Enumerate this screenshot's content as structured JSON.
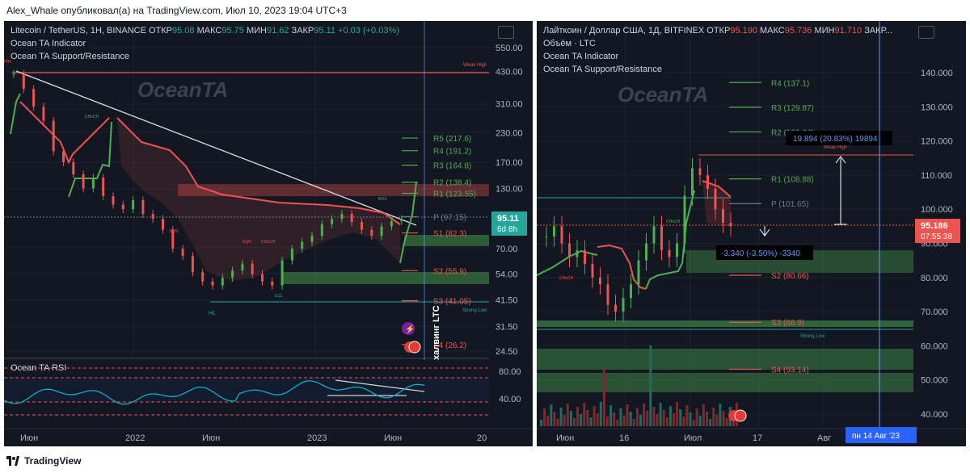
{
  "header": {
    "text": "Alex_Whale опубликовал(а) на TradingView.com, Июл 10, 2023 19:04 UTC+3"
  },
  "footer": {
    "brand": "TradingView"
  },
  "left": {
    "legend": {
      "symbol": "Litecoin / TetherUS, 1H, BINANCE",
      "open_label": "ОТКР",
      "open": "95.08",
      "high_label": "МАКС",
      "high": "95.75",
      "low_label": "МИН",
      "low": "91.62",
      "close_label": "ЗАКР",
      "close": "95.11",
      "change": "+0.03 (+0.03%)",
      "ind1": "Ocean TA Indicator",
      "ind2": "Ocean TA Support/Resistance"
    },
    "watermark": "OceanTA",
    "price_box": {
      "value": "95.11",
      "sub": "6d 8h"
    },
    "annotation": "халвинг LTC",
    "rsi_title": "Ocean TA RSI",
    "labels": {
      "weak_high": "Weak High",
      "strong_low": "Strong Low",
      "hh": "HH",
      "hl": "HL",
      "bos": "BOS",
      "choch": "CHoCH",
      "eqh": "EQH",
      "eql": "EQL"
    }
  },
  "right": {
    "legend": {
      "symbol": "Лайткоин / Доллар США, 1Д, BITFINEX",
      "open_label": "ОТКР",
      "open": "95.190",
      "high_label": "МАКС",
      "high": "95.736",
      "low_label": "МИН",
      "low": "91.710",
      "close_label": "ЗАКР...",
      "ind0": "Объём · LTC",
      "ind1": "Ocean TA Indicator",
      "ind2": "Ocean TA Support/Resistance"
    },
    "watermark": "OceanTA",
    "price_box": {
      "value": "95.186",
      "sub": "07:55:38"
    },
    "measure": "19.894 (20.83%) 19894",
    "measure2": "-3.340 (-3.50%) -3340",
    "date_box": "пн 14 Авг '23",
    "labels": {
      "weak_high": "Weak High",
      "strong_low": "Strong Low",
      "choch": "CHoCH"
    }
  },
  "chart_data": [
    {
      "type": "line",
      "title": "Litecoin / TetherUS, 1H, BINANCE",
      "y_scale": "log",
      "y_ticks": [
        "550.00",
        "430.00",
        "310.00",
        "230.00",
        "170.00",
        "130.00",
        "70.00",
        "54.00",
        "41.50",
        "31.50",
        "24.50"
      ],
      "x_ticks": [
        "Июн",
        "2022",
        "Июн",
        "2023",
        "Июн",
        "20"
      ],
      "rsi_ticks": [
        "80.00",
        "40.00"
      ],
      "levels": [
        {
          "name": "R5",
          "value": 217.6,
          "label": "R5 (217.6)"
        },
        {
          "name": "R4",
          "value": 191.2,
          "label": "R4 (191.2)"
        },
        {
          "name": "R3",
          "value": 164.8,
          "label": "R3 (164.8)"
        },
        {
          "name": "R2",
          "value": 138.4,
          "label": "R2 (138.4)"
        },
        {
          "name": "R1",
          "value": 123.55,
          "label": "R1 (123.55)"
        },
        {
          "name": "P",
          "value": 97.15,
          "label": "P (97.15)"
        },
        {
          "name": "S1",
          "value": 82.3,
          "label": "S1 (82.3)"
        },
        {
          "name": "S2",
          "value": 55.9,
          "label": "S2 (55.9)"
        },
        {
          "name": "S3",
          "value": 41.05,
          "label": "S3 (41.05)"
        },
        {
          "name": "S4",
          "value": 26.2,
          "label": "S4 (26.2)"
        }
      ],
      "series": [
        {
          "values": [
            420,
            360,
            300,
            260,
            190,
            170,
            150,
            130,
            145,
            120,
            110,
            105,
            115,
            100,
            95,
            85,
            70,
            65,
            55,
            50,
            48,
            52,
            56,
            60,
            54,
            50,
            48,
            62,
            70,
            75,
            80,
            90,
            95,
            100,
            92,
            85,
            80,
            88,
            93,
            95
          ]
        }
      ]
    },
    {
      "type": "line",
      "title": "Лайткоин / Доллар США, 1Д, BITFINEX",
      "y_ticks": [
        "140.000",
        "130.000",
        "120.000",
        "110.000",
        "100.000",
        "90.000",
        "80.000",
        "70.000",
        "60.000",
        "50.000",
        "40.000"
      ],
      "x_ticks": [
        "Июн",
        "16",
        "Июл",
        "17",
        "Авг"
      ],
      "levels": [
        {
          "name": "R4",
          "value": 137.1,
          "label": "R4 (137.1)"
        },
        {
          "name": "R3",
          "value": 129.87,
          "label": "R3 (129.87)"
        },
        {
          "name": "R2",
          "value": 122.64,
          "label": "R2 (122.64)"
        },
        {
          "name": "R1",
          "value": 108.88,
          "label": "R1 (108.88)"
        },
        {
          "name": "P",
          "value": 101.65,
          "label": "P (101.65)"
        },
        {
          "name": "S1",
          "value": 87.89,
          "label": "S1 (87.89)"
        },
        {
          "name": "S2",
          "value": 80.66,
          "label": "S2 (80.66)"
        },
        {
          "name": "S3",
          "value": 66.9,
          "label": "S3 (66.9)"
        },
        {
          "name": "S4",
          "value": 53.14,
          "label": "S4 (53.14)"
        }
      ],
      "series": [
        {
          "values": [
            92,
            95,
            90,
            86,
            88,
            84,
            80,
            78,
            72,
            70,
            74,
            78,
            85,
            90,
            95,
            88,
            86,
            90,
            104,
            112,
            110,
            106,
            100,
            96,
            95
          ]
        }
      ]
    }
  ]
}
